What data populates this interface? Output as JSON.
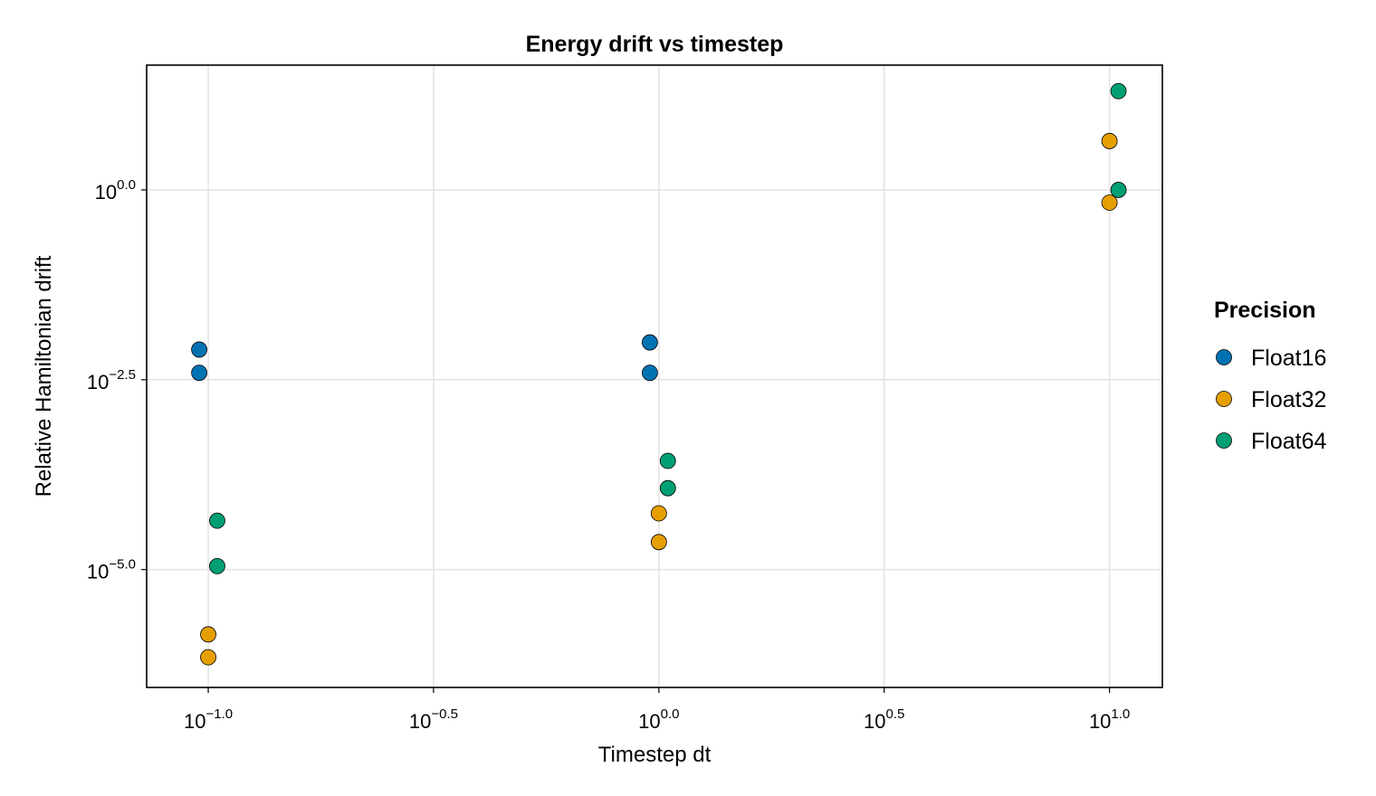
{
  "chart_data": {
    "type": "scatter",
    "title": "Energy drift vs timestep",
    "xlabel": "Timestep dt",
    "ylabel": "Relative Hamiltonian drift",
    "xscale": "log10",
    "yscale": "log10",
    "xlim": [
      0.073,
      13.1
    ],
    "ylim": [
      2.8e-07,
      44
    ],
    "grid": true,
    "x_ticks": [
      {
        "value": 0.1,
        "base": "10",
        "exp": "−1.0"
      },
      {
        "value": 0.3162,
        "base": "10",
        "exp": "−0.5"
      },
      {
        "value": 1,
        "base": "10",
        "exp": "0.0"
      },
      {
        "value": 3.162,
        "base": "10",
        "exp": "0.5"
      },
      {
        "value": 10,
        "base": "10",
        "exp": "1.0"
      }
    ],
    "y_ticks": [
      {
        "value": 1,
        "base": "10",
        "exp": "0.0"
      },
      {
        "value": 0.003162,
        "base": "10",
        "exp": "−2.5"
      },
      {
        "value": 1e-05,
        "base": "10",
        "exp": "−5.0"
      }
    ],
    "legend": {
      "title": "Precision",
      "position": "right"
    },
    "series": [
      {
        "name": "Float16",
        "color": "#0072b2",
        "points": [
          {
            "x": 0.0955,
            "y": 0.0079
          },
          {
            "x": 0.0955,
            "y": 0.0039
          },
          {
            "x": 0.955,
            "y": 0.0098
          },
          {
            "x": 0.955,
            "y": 0.0039
          }
        ]
      },
      {
        "name": "Float32",
        "color": "#e69f00",
        "points": [
          {
            "x": 0.1,
            "y": 1.4e-06
          },
          {
            "x": 0.1,
            "y": 7e-07
          },
          {
            "x": 1.0,
            "y": 5.5e-05
          },
          {
            "x": 1.0,
            "y": 2.3e-05
          },
          {
            "x": 10.0,
            "y": 4.4
          },
          {
            "x": 10.0,
            "y": 0.68
          }
        ]
      },
      {
        "name": "Float64",
        "color": "#009e73",
        "points": [
          {
            "x": 0.1047,
            "y": 4.4e-05
          },
          {
            "x": 0.1047,
            "y": 1.11e-05
          },
          {
            "x": 1.047,
            "y": 0.00027
          },
          {
            "x": 1.047,
            "y": 0.000118
          },
          {
            "x": 10.47,
            "y": 20
          },
          {
            "x": 10.47,
            "y": 1.0
          }
        ]
      }
    ]
  }
}
